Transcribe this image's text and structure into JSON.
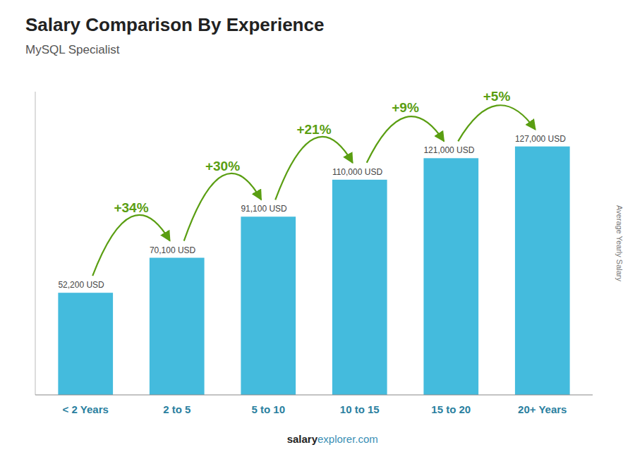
{
  "chart_data": {
    "type": "bar",
    "title": "Salary Comparison By Experience",
    "subtitle": "MySQL Specialist",
    "ylabel": "Average Yearly Salary",
    "categories": [
      "< 2 Years",
      "2 to 5",
      "5 to 10",
      "10 to 15",
      "15 to 20",
      "20+ Years"
    ],
    "values": [
      52200,
      70100,
      91100,
      110000,
      121000,
      127000
    ],
    "value_labels": [
      "52,200 USD",
      "70,100 USD",
      "91,100 USD",
      "110,000 USD",
      "121,000 USD",
      "127,000 USD"
    ],
    "data_labels": true,
    "color": "#44bbdd",
    "ylim": [
      0,
      155000
    ],
    "yticks": [],
    "tick_labels": "x",
    "grid": false,
    "annotations": [
      "+34%",
      "+30%",
      "+21%",
      "+9%",
      "+5%"
    ],
    "footer": [
      "salary",
      "explorer.com"
    ]
  }
}
